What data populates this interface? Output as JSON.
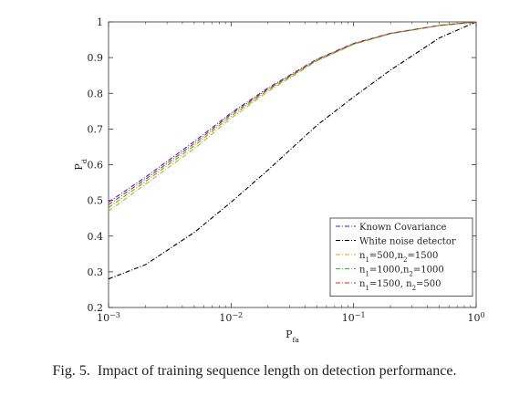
{
  "caption": {
    "figure_label": "Fig. 5.",
    "text": "Impact of training sequence length on detection performance."
  },
  "chart_data": {
    "type": "line",
    "title": "",
    "xlabel": "P_fa",
    "ylabel": "P_d",
    "xscale": "log",
    "xlim": [
      0.001,
      1
    ],
    "ylim": [
      0.2,
      1
    ],
    "x_ticks": [
      0.001,
      0.01,
      0.1,
      1
    ],
    "y_ticks": [
      0.2,
      0.3,
      0.4,
      0.5,
      0.6,
      0.7,
      0.8,
      0.9,
      1
    ],
    "y_tick_labels": [
      "0.2",
      "0.3",
      "0.4",
      "0.5",
      "0.6",
      "0.7",
      "0.8",
      "0.9",
      "1"
    ],
    "grid": false,
    "legend_position": "bottom-right",
    "x": [
      0.001,
      0.002,
      0.005,
      0.01,
      0.02,
      0.05,
      0.1,
      0.2,
      0.5,
      1
    ],
    "series": [
      {
        "name": "Known Covariance",
        "color": "#2a2ae0",
        "dash": "dashdot",
        "values": [
          0.495,
          0.565,
          0.665,
          0.745,
          0.815,
          0.895,
          0.94,
          0.968,
          0.99,
          1.0
        ]
      },
      {
        "name": "White noise detector",
        "color": "#000000",
        "dash": "dashdot",
        "values": [
          0.28,
          0.32,
          0.41,
          0.495,
          0.585,
          0.71,
          0.79,
          0.865,
          0.955,
          1.0
        ]
      },
      {
        "name": "n1=500,n2=1500",
        "color": "#e0a020",
        "dash": "dashdot",
        "values": [
          0.47,
          0.545,
          0.645,
          0.73,
          0.805,
          0.89,
          0.937,
          0.967,
          0.99,
          1.0
        ]
      },
      {
        "name": "n1=1000,n2=1000",
        "color": "#22cc22",
        "dash": "dashdot",
        "values": [
          0.48,
          0.553,
          0.653,
          0.736,
          0.809,
          0.892,
          0.938,
          0.967,
          0.99,
          1.0
        ]
      },
      {
        "name": "n1=1500, n2=500",
        "color": "#dd2222",
        "dash": "dashdot",
        "values": [
          0.488,
          0.559,
          0.659,
          0.741,
          0.812,
          0.894,
          0.939,
          0.968,
          0.99,
          1.0
        ]
      }
    ]
  }
}
